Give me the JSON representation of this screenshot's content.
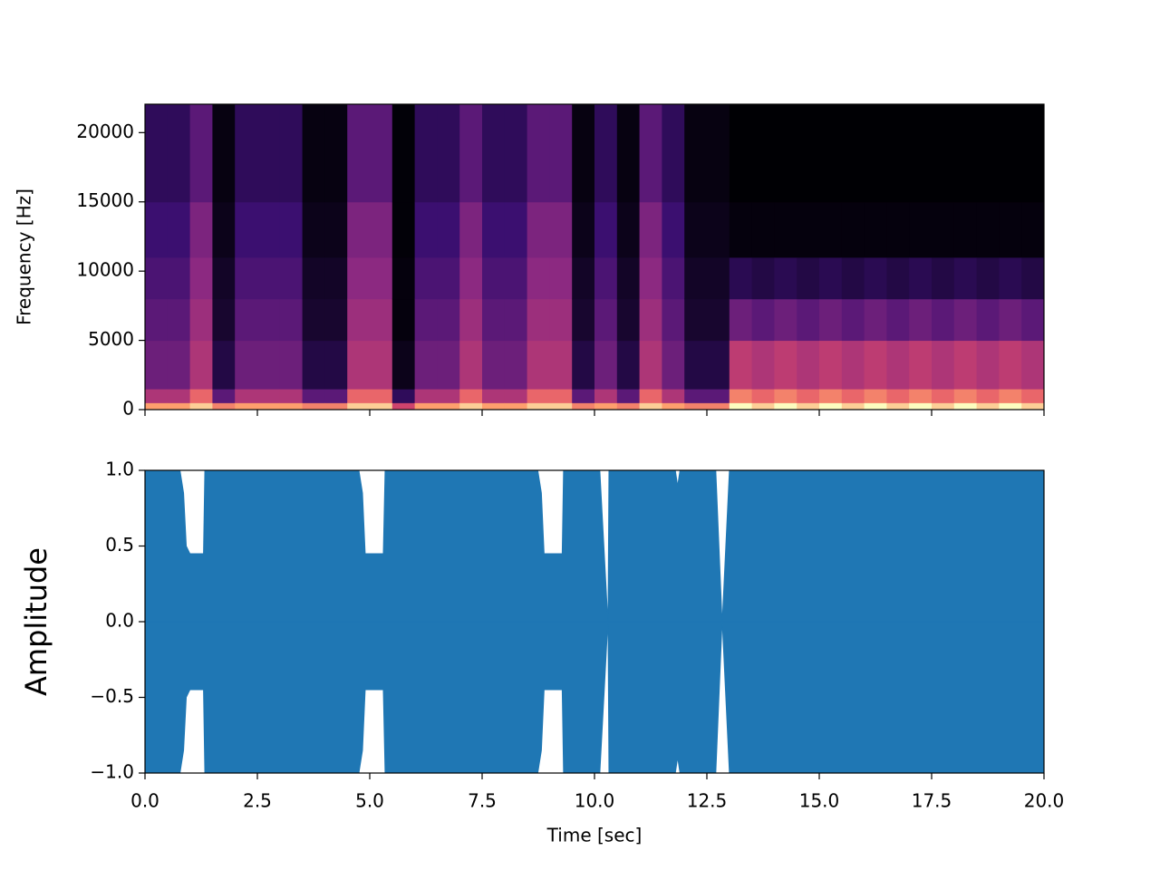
{
  "chart_data": [
    {
      "type": "spectrogram",
      "ylabel": "Frequency [Hz]",
      "colormap": "magma",
      "xlim": [
        0,
        20
      ],
      "ylim": [
        0,
        22050
      ],
      "xticks": [
        0,
        2.5,
        5,
        7.5,
        10,
        12.5,
        15,
        17.5,
        20
      ],
      "yticks": [
        0,
        5000,
        10000,
        15000,
        20000
      ],
      "xbins": [
        0,
        0.5,
        1,
        1.5,
        2,
        2.5,
        3,
        3.5,
        4,
        4.5,
        5,
        5.5,
        6,
        6.5,
        7,
        7.5,
        8,
        8.5,
        9,
        9.5,
        10,
        10.5,
        11,
        11.5,
        12,
        12.5,
        13,
        13.5,
        14,
        14.5,
        15,
        15.5,
        16,
        16.5,
        17,
        17.5,
        18,
        18.5,
        19,
        19.5,
        20
      ],
      "ybins": [
        0,
        500,
        1500,
        5000,
        8000,
        11000,
        15000,
        22050
      ],
      "values": [
        [
          0.9,
          0.6,
          0.4,
          0.35,
          0.3,
          0.25,
          0.2
        ],
        [
          0.9,
          0.6,
          0.4,
          0.35,
          0.3,
          0.25,
          0.2
        ],
        [
          0.95,
          0.8,
          0.6,
          0.55,
          0.5,
          0.45,
          0.35
        ],
        [
          0.85,
          0.35,
          0.15,
          0.1,
          0.08,
          0.05,
          0.03
        ],
        [
          0.9,
          0.6,
          0.4,
          0.35,
          0.3,
          0.25,
          0.2
        ],
        [
          0.9,
          0.6,
          0.4,
          0.35,
          0.3,
          0.25,
          0.2
        ],
        [
          0.9,
          0.6,
          0.4,
          0.35,
          0.3,
          0.25,
          0.2
        ],
        [
          0.85,
          0.35,
          0.15,
          0.1,
          0.08,
          0.05,
          0.03
        ],
        [
          0.85,
          0.35,
          0.15,
          0.1,
          0.08,
          0.05,
          0.03
        ],
        [
          0.95,
          0.8,
          0.6,
          0.55,
          0.5,
          0.45,
          0.35
        ],
        [
          0.95,
          0.8,
          0.6,
          0.55,
          0.5,
          0.45,
          0.35
        ],
        [
          0.7,
          0.2,
          0.05,
          0.02,
          0.02,
          0.01,
          0.01
        ],
        [
          0.9,
          0.6,
          0.4,
          0.35,
          0.3,
          0.25,
          0.2
        ],
        [
          0.9,
          0.6,
          0.4,
          0.35,
          0.3,
          0.25,
          0.2
        ],
        [
          0.95,
          0.8,
          0.6,
          0.55,
          0.5,
          0.45,
          0.35
        ],
        [
          0.9,
          0.6,
          0.4,
          0.35,
          0.3,
          0.25,
          0.2
        ],
        [
          0.9,
          0.6,
          0.4,
          0.35,
          0.3,
          0.25,
          0.2
        ],
        [
          0.95,
          0.8,
          0.6,
          0.55,
          0.5,
          0.45,
          0.35
        ],
        [
          0.95,
          0.8,
          0.6,
          0.55,
          0.5,
          0.45,
          0.35
        ],
        [
          0.85,
          0.35,
          0.15,
          0.1,
          0.08,
          0.05,
          0.03
        ],
        [
          0.9,
          0.6,
          0.4,
          0.35,
          0.3,
          0.25,
          0.2
        ],
        [
          0.85,
          0.35,
          0.15,
          0.1,
          0.08,
          0.05,
          0.03
        ],
        [
          0.95,
          0.8,
          0.6,
          0.55,
          0.5,
          0.45,
          0.35
        ],
        [
          0.9,
          0.6,
          0.4,
          0.35,
          0.3,
          0.25,
          0.2
        ],
        [
          0.85,
          0.35,
          0.15,
          0.1,
          0.08,
          0.05,
          0.03
        ],
        [
          0.85,
          0.35,
          0.15,
          0.1,
          0.08,
          0.05,
          0.03
        ],
        [
          1.0,
          0.85,
          0.65,
          0.4,
          0.18,
          0.02,
          0.0
        ],
        [
          0.95,
          0.8,
          0.6,
          0.35,
          0.15,
          0.02,
          0.0
        ],
        [
          1.0,
          0.85,
          0.65,
          0.4,
          0.18,
          0.02,
          0.0
        ],
        [
          0.95,
          0.8,
          0.6,
          0.35,
          0.15,
          0.02,
          0.0
        ],
        [
          1.0,
          0.85,
          0.65,
          0.4,
          0.18,
          0.02,
          0.0
        ],
        [
          0.95,
          0.8,
          0.6,
          0.35,
          0.15,
          0.02,
          0.0
        ],
        [
          1.0,
          0.85,
          0.65,
          0.4,
          0.18,
          0.02,
          0.0
        ],
        [
          0.95,
          0.8,
          0.6,
          0.35,
          0.15,
          0.02,
          0.0
        ],
        [
          1.0,
          0.85,
          0.65,
          0.4,
          0.18,
          0.02,
          0.0
        ],
        [
          0.95,
          0.8,
          0.6,
          0.35,
          0.15,
          0.02,
          0.0
        ],
        [
          1.0,
          0.85,
          0.65,
          0.4,
          0.18,
          0.02,
          0.0
        ],
        [
          0.95,
          0.8,
          0.6,
          0.35,
          0.15,
          0.02,
          0.0
        ],
        [
          1.0,
          0.85,
          0.65,
          0.4,
          0.18,
          0.02,
          0.0
        ],
        [
          0.95,
          0.8,
          0.6,
          0.35,
          0.15,
          0.02,
          0.0
        ]
      ]
    },
    {
      "type": "area",
      "ylabel": "Amplitude",
      "xlabel": "Time [sec]",
      "xlim": [
        0,
        20
      ],
      "ylim": [
        -1,
        1
      ],
      "xticks": [
        {
          "value": 0,
          "label": "0.0"
        },
        2.5,
        {
          "value": 5,
          "label": "5.0"
        },
        7.5,
        {
          "value": 10,
          "label": "10.0"
        },
        12.5,
        {
          "value": 15,
          "label": "15.0"
        },
        17.5,
        {
          "value": 20,
          "label": "20.0"
        }
      ],
      "yticks": [
        {
          "value": -1,
          "label": "−1.0"
        },
        {
          "value": -0.5,
          "label": "−0.5"
        },
        {
          "value": 0,
          "label": "0.0"
        },
        0.5,
        {
          "value": 1,
          "label": "1.0"
        }
      ],
      "x": [
        0,
        0.78,
        0.86,
        0.92,
        1.0,
        1.3,
        1.33,
        4.76,
        4.84,
        4.9,
        5.3,
        5.34,
        8.74,
        8.82,
        8.88,
        9.28,
        9.31,
        10.12,
        10.3,
        10.32,
        11.8,
        11.85,
        11.9,
        12.7,
        12.84,
        13.0,
        20
      ],
      "series": [
        {
          "color": "#1f77b4",
          "values": [
            1,
            1,
            0.85,
            0.5,
            0.45,
            0.45,
            1,
            1,
            0.85,
            0.45,
            0.45,
            1,
            1,
            0.85,
            0.45,
            0.45,
            1,
            1,
            0,
            1,
            1,
            0.9,
            1,
            1,
            0,
            1,
            1
          ]
        },
        {
          "color": "#1f77b4",
          "values": [
            -1,
            -1,
            -0.85,
            -0.5,
            -0.45,
            -0.45,
            -1,
            -1,
            -0.85,
            -0.45,
            -0.45,
            -1,
            -1,
            -0.85,
            -0.45,
            -0.45,
            -1,
            -1,
            0,
            -1,
            -1,
            -0.9,
            -1,
            -1,
            0,
            -1,
            -1
          ]
        }
      ]
    }
  ]
}
